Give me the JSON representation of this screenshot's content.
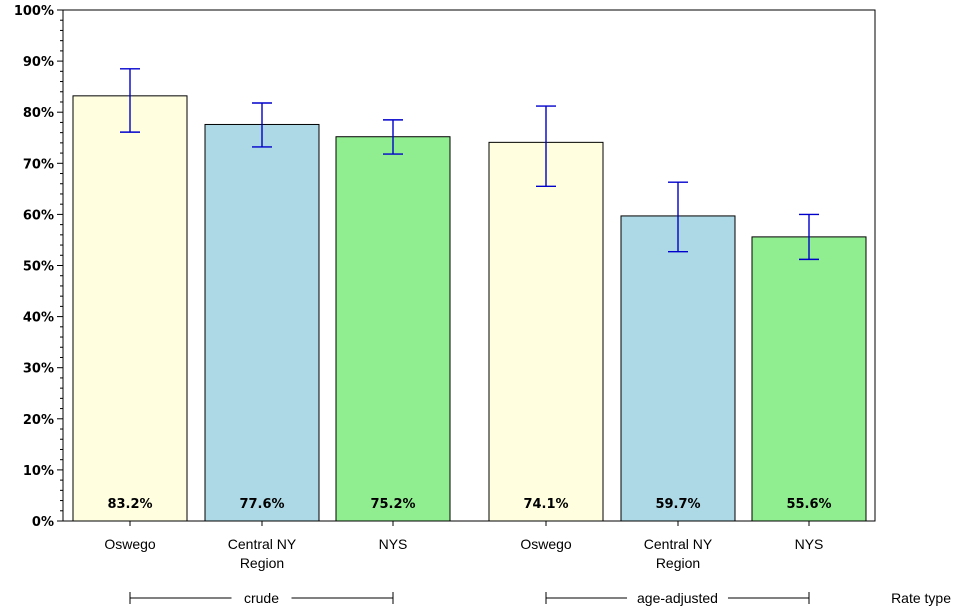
{
  "chart_data": {
    "type": "bar",
    "ylim": [
      0,
      100
    ],
    "yticks": [
      "0%",
      "10%",
      "20%",
      "30%",
      "40%",
      "50%",
      "60%",
      "70%",
      "80%",
      "90%",
      "100%"
    ],
    "groups": [
      {
        "name": "crude",
        "bars": [
          {
            "category": [
              "Oswego"
            ],
            "value": 83.2,
            "ci_low": 76.1,
            "ci_high": 88.5,
            "label": "83.2%",
            "color": "#FFFFE0"
          },
          {
            "category": [
              "Central NY",
              "Region"
            ],
            "value": 77.6,
            "ci_low": 73.2,
            "ci_high": 81.8,
            "label": "77.6%",
            "color": "#ADD8E6"
          },
          {
            "category": [
              "NYS"
            ],
            "value": 75.2,
            "ci_low": 71.8,
            "ci_high": 78.5,
            "label": "75.2%",
            "color": "#90EE90"
          }
        ]
      },
      {
        "name": "age-adjusted",
        "bars": [
          {
            "category": [
              "Oswego"
            ],
            "value": 74.1,
            "ci_low": 65.5,
            "ci_high": 81.2,
            "label": "74.1%",
            "color": "#FFFFE0"
          },
          {
            "category": [
              "Central NY",
              "Region"
            ],
            "value": 59.7,
            "ci_low": 52.7,
            "ci_high": 66.3,
            "label": "59.7%",
            "color": "#ADD8E6"
          },
          {
            "category": [
              "NYS"
            ],
            "value": 55.6,
            "ci_low": 51.2,
            "ci_high": 60.0,
            "label": "55.6%",
            "color": "#90EE90"
          }
        ]
      }
    ],
    "group_axis_label": "Rate type",
    "errorbar_color": "#0000CC",
    "grid": false,
    "legend": "none"
  }
}
